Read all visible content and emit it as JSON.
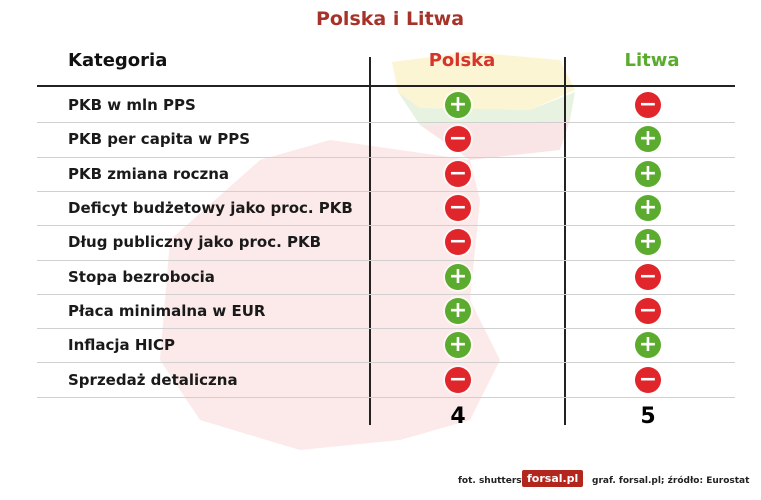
{
  "title": "Polska i Litwa",
  "table": {
    "header": [
      "Kategoria",
      "Polska",
      "Litwa"
    ],
    "header_colors": [
      null,
      "#d9342b",
      "#5aab2e"
    ],
    "symbol_colors": {
      "+": "#5aab2e",
      "−": "#e0262b"
    },
    "rows": [
      [
        "PKB w mln PPS",
        "+",
        "−"
      ],
      [
        "PKB per capita w PPS",
        "−",
        "+"
      ],
      [
        "PKB zmiana roczna",
        "−",
        "+"
      ],
      [
        "Deficyt budżetowy jako proc. PKB",
        "−",
        "+"
      ],
      [
        "Dług publiczny jako proc. PKB",
        "−",
        "+"
      ],
      [
        "Stopa bezrobocia",
        "+",
        "−"
      ],
      [
        "Płaca minimalna w EUR",
        "+",
        "−"
      ],
      [
        "Inflacja HICP",
        "+",
        "+"
      ],
      [
        "Sprzedaż detaliczna",
        "−",
        "−"
      ]
    ],
    "totals": [
      4,
      5
    ]
  },
  "footer": {
    "photo": "fot. shutterstock",
    "logo": "forsal.pl",
    "credit": "graf. forsal.pl;  źródło: Eurostat"
  }
}
